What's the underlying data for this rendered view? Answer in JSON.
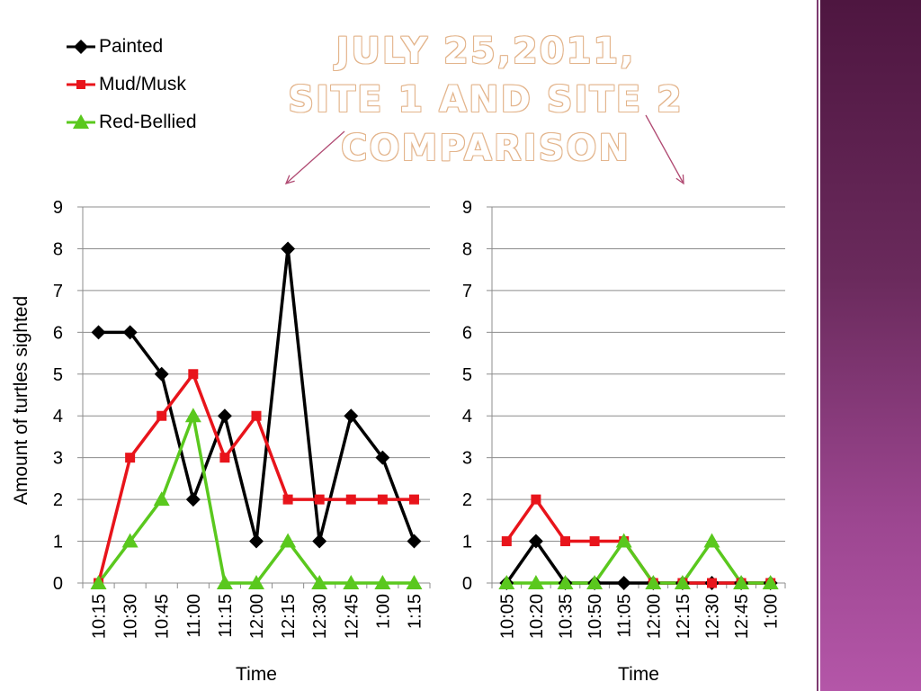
{
  "title": {
    "line1": "JULY 25,2011,",
    "line2": "SITE 1 AND SITE 2",
    "line3": "COMPARISON"
  },
  "legend": [
    {
      "label": "Painted",
      "color": "#000000",
      "marker": "diamond"
    },
    {
      "label": "Mud/Musk",
      "color": "#e8141b",
      "marker": "square"
    },
    {
      "label": "Red-Bellied",
      "color": "#5ac81e",
      "marker": "triangle"
    }
  ],
  "colors": {
    "painted": "#000000",
    "mud_musk": "#e8141b",
    "red_bellied": "#5ac81e",
    "arrow": "#b04a72",
    "grid": "#8c8c8c"
  },
  "chart_data": [
    {
      "type": "line",
      "xlabel": "Time",
      "ylabel": "Amount of turtles sighted",
      "ylim": [
        0,
        9
      ],
      "yticks": [
        "0",
        "1",
        "2",
        "3",
        "4",
        "5",
        "6",
        "7",
        "8",
        "9"
      ],
      "grid": true,
      "categories": [
        "10:15",
        "10:30",
        "10:45",
        "11:00",
        "11:15",
        "12:00",
        "12:15",
        "12:30",
        "12:45",
        "1:00",
        "1:15"
      ],
      "series": [
        {
          "name": "Painted",
          "values": [
            6,
            6,
            5,
            2,
            4,
            1,
            8,
            1,
            4,
            3,
            1
          ]
        },
        {
          "name": "Mud/Musk",
          "values": [
            0,
            3,
            4,
            5,
            3,
            4,
            2,
            2,
            2,
            2,
            2
          ]
        },
        {
          "name": "Red-Bellied",
          "values": [
            0,
            1,
            2,
            4,
            0,
            0,
            1,
            0,
            0,
            0,
            0
          ]
        }
      ]
    },
    {
      "type": "line",
      "xlabel": "Time",
      "ylabel": "",
      "ylim": [
        0,
        9
      ],
      "yticks": [
        "0",
        "1",
        "2",
        "3",
        "4",
        "5",
        "6",
        "7",
        "8",
        "9"
      ],
      "grid": true,
      "categories": [
        "10:05",
        "10:20",
        "10:35",
        "10:50",
        "11:05",
        "12:00",
        "12:15",
        "12:30",
        "12:45",
        "1:00"
      ],
      "series": [
        {
          "name": "Painted",
          "values": [
            0,
            1,
            0,
            0,
            0,
            0,
            0,
            0,
            0,
            0
          ]
        },
        {
          "name": "Mud/Musk",
          "values": [
            1,
            2,
            1,
            1,
            1,
            0,
            0,
            0,
            0,
            0
          ]
        },
        {
          "name": "Red-Bellied",
          "values": [
            0,
            0,
            0,
            0,
            1,
            0,
            0,
            1,
            0,
            0
          ]
        }
      ]
    }
  ]
}
